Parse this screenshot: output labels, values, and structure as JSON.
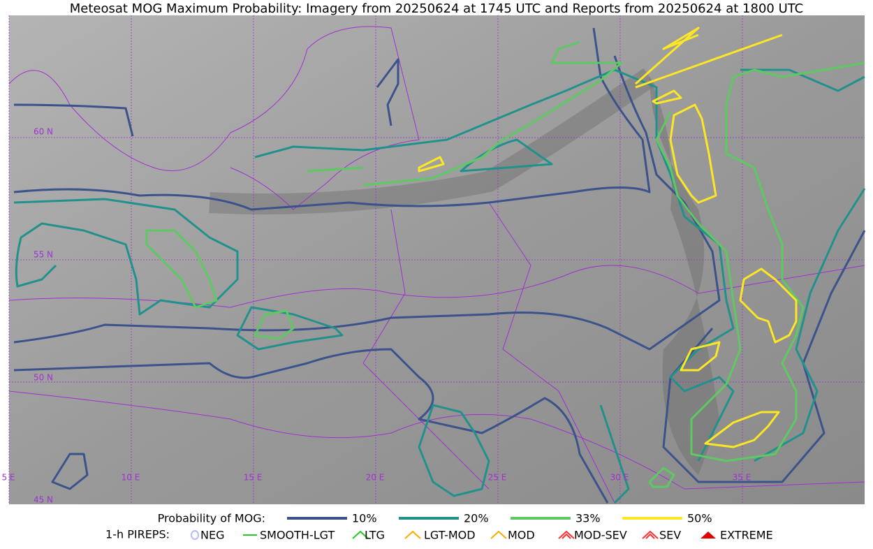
{
  "title": "Meteosat MOG Maximum Probability: Imagery from 20250624 at 1745 UTC and Reports from 20250624 at 1800 UTC",
  "map": {
    "lon_labels": [
      "5 E",
      "10 E",
      "15 E",
      "20 E",
      "25 E",
      "30 E",
      "35 E"
    ],
    "lat_labels": [
      "60 N",
      "55 N",
      "50 N",
      "45 N"
    ]
  },
  "legend": {
    "probability": {
      "title": "Probability of MOG:",
      "items": [
        "10%",
        "20%",
        "33%",
        "50%"
      ]
    },
    "pireps": {
      "title": "1-h PIREPS:",
      "items": [
        "NEG",
        "SMOOTH-LGT",
        "LTG",
        "LGT-MOD",
        "MOD",
        "MOD-SEV",
        "SEV",
        "EXTREME"
      ]
    }
  }
}
